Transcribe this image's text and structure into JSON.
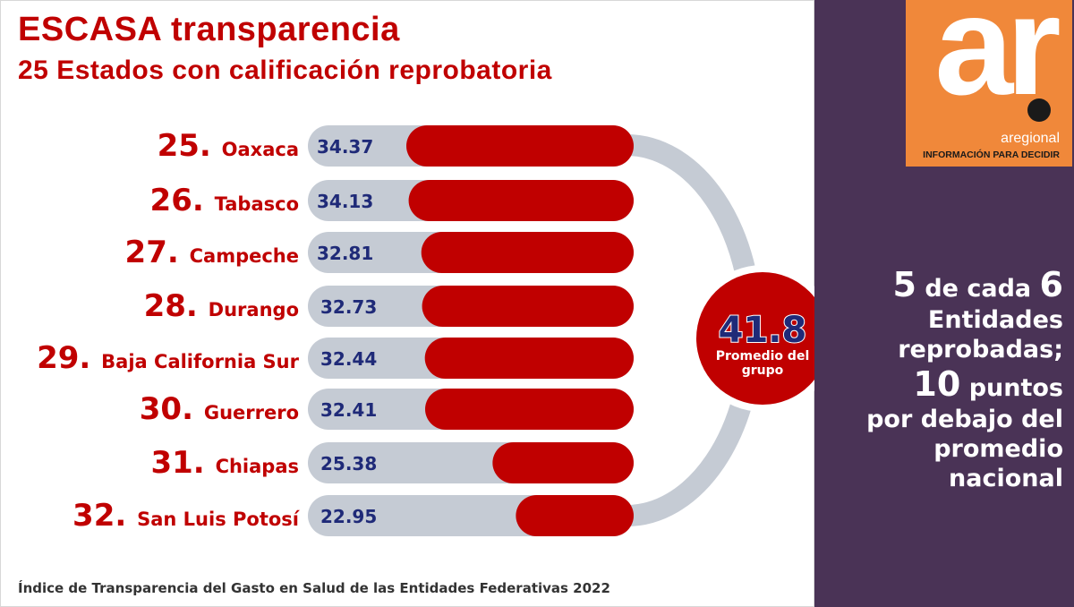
{
  "header": {
    "title": "ESCASA transparencia",
    "subtitle": "25 Estados con calificación reprobatoria"
  },
  "footer": {
    "source": "Índice de Transparencia del Gasto en Salud de las Entidades Federativas 2022"
  },
  "logo": {
    "mark": "ar",
    "name": "aregional",
    "tagline": "INFORMACIÓN PARA DECIDIR"
  },
  "average": {
    "value": "41.8",
    "label_line1": "Promedio del",
    "label_line2": "grupo"
  },
  "side_panel": {
    "line1_n1": "5",
    "line1_mid": " de cada ",
    "line1_n2": "6",
    "line2": "Entidades",
    "line3": "reprobadas;",
    "line4_n": "10",
    "line4_rest": " puntos",
    "line5": "por debajo del",
    "line6": "promedio",
    "line7": "nacional"
  },
  "colors": {
    "accent_red": "#c00000",
    "track_gray": "#c5cbd4",
    "value_blue": "#1f2a78",
    "panel_purple": "#4a3356",
    "logo_orange": "#f0883a"
  },
  "chart_data": {
    "type": "bar",
    "orientation": "horizontal",
    "categories": [
      "Oaxaca",
      "Tabasco",
      "Campeche",
      "Durango",
      "Baja California Sur",
      "Guerrero",
      "Chiapas",
      "San Luis Potosí"
    ],
    "ranks": [
      "25.",
      "26.",
      "27.",
      "28.",
      "29.",
      "30.",
      "31.",
      "32."
    ],
    "values": [
      34.37,
      34.13,
      32.81,
      32.73,
      32.44,
      32.41,
      25.38,
      22.95
    ],
    "value_labels": [
      "34.37",
      "34.13",
      "32.81",
      "32.73",
      "32.44",
      "32.41",
      "25.38",
      "22.95"
    ],
    "reference_value": 41.8
  }
}
